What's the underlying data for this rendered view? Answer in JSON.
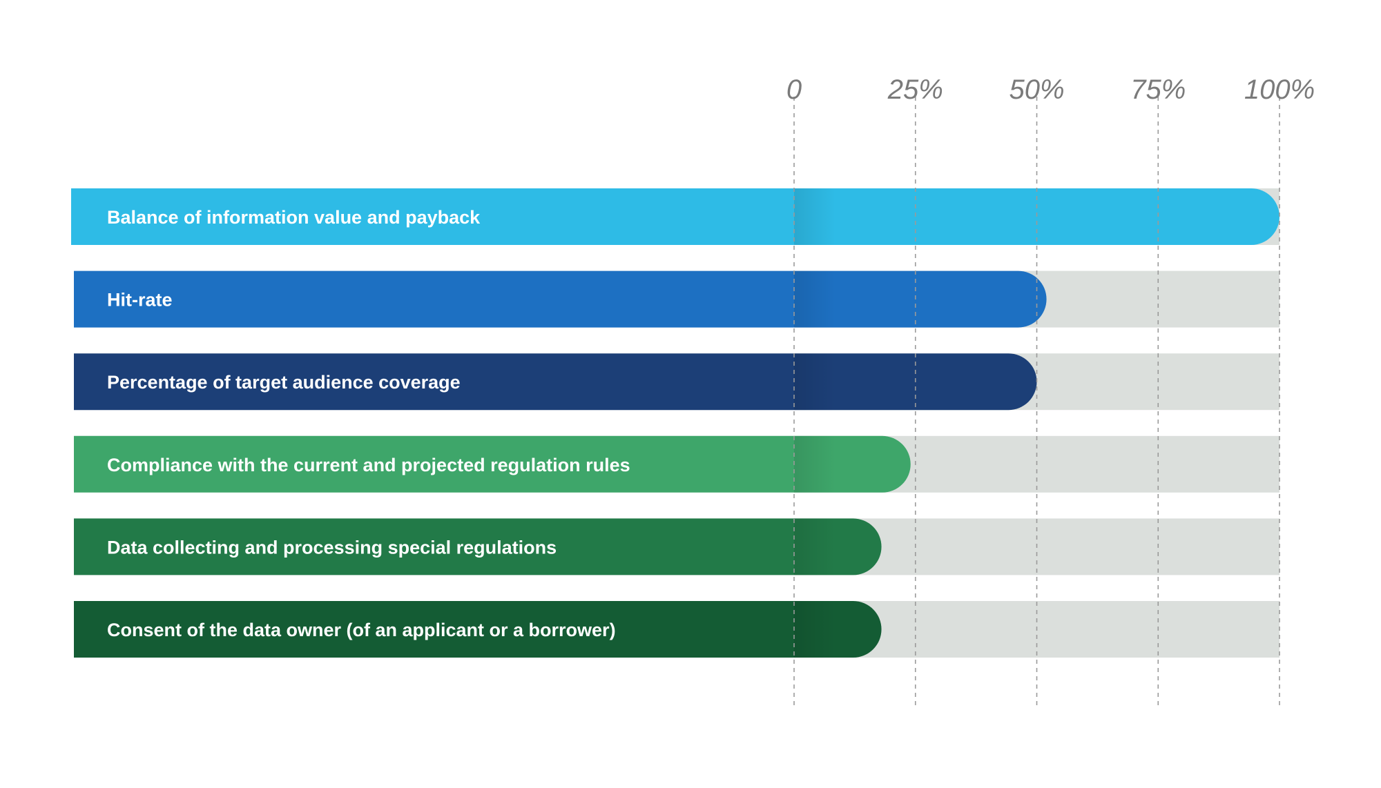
{
  "chart_data": {
    "type": "bar",
    "orientation": "horizontal",
    "categories": [
      "Balance of information value and payback",
      "Hit-rate",
      "Percentage of target audience coverage",
      "Compliance with the current and projected regulation rules",
      "Data collecting and processing special regulations",
      "Consent of the data owner (of an applicant or a borrower)"
    ],
    "values": [
      100,
      52,
      50,
      24,
      18,
      18
    ],
    "colors": [
      "#2ebbe6",
      "#1d70c2",
      "#1c3f77",
      "#3ea66a",
      "#227a48",
      "#145c34"
    ],
    "track_color": "#dbdfdc",
    "xlim": [
      0,
      100
    ],
    "x_ticks": [
      0,
      25,
      50,
      75,
      100
    ],
    "x_tick_labels": [
      "0",
      "25%",
      "50%",
      "75%",
      "100%"
    ],
    "tick_position": "top",
    "grid": "vertical-dashed",
    "title": "",
    "xlabel": "",
    "ylabel": ""
  }
}
